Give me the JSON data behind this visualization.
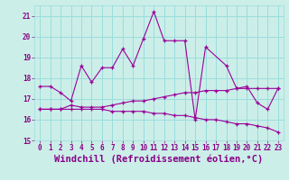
{
  "xlabel": "Windchill (Refroidissement éolien,°C)",
  "background_color": "#cceee8",
  "grid_color": "#99dddd",
  "line_color": "#990099",
  "xlim": [
    -0.5,
    23.5
  ],
  "ylim": [
    15,
    21.5
  ],
  "yticks": [
    15,
    16,
    17,
    18,
    19,
    20,
    21
  ],
  "xticks": [
    0,
    1,
    2,
    3,
    4,
    5,
    6,
    7,
    8,
    9,
    10,
    11,
    12,
    13,
    14,
    15,
    16,
    17,
    18,
    19,
    20,
    21,
    22,
    23
  ],
  "series1_x": [
    0,
    1,
    2,
    3,
    4,
    5,
    6,
    7,
    8,
    9,
    10,
    11,
    12,
    13,
    14,
    15,
    16,
    18,
    19,
    20,
    21,
    22,
    23
  ],
  "series1_y": [
    17.6,
    17.6,
    17.3,
    16.9,
    18.6,
    17.8,
    18.5,
    18.5,
    19.4,
    18.6,
    19.9,
    21.2,
    19.8,
    19.8,
    19.8,
    16.0,
    19.5,
    18.6,
    17.5,
    17.6,
    16.8,
    16.5,
    17.5
  ],
  "series2_x": [
    0,
    1,
    2,
    3,
    4,
    5,
    6,
    7,
    8,
    9,
    10,
    11,
    12,
    13,
    14,
    15,
    16,
    17,
    18,
    19,
    20,
    21,
    22,
    23
  ],
  "series2_y": [
    16.5,
    16.5,
    16.5,
    16.7,
    16.6,
    16.6,
    16.6,
    16.7,
    16.8,
    16.9,
    16.9,
    17.0,
    17.1,
    17.2,
    17.3,
    17.3,
    17.4,
    17.4,
    17.4,
    17.5,
    17.5,
    17.5,
    17.5,
    17.5
  ],
  "series3_x": [
    0,
    1,
    2,
    3,
    4,
    5,
    6,
    7,
    8,
    9,
    10,
    11,
    12,
    13,
    14,
    15,
    16,
    17,
    18,
    19,
    20,
    21,
    22,
    23
  ],
  "series3_y": [
    16.5,
    16.5,
    16.5,
    16.5,
    16.5,
    16.5,
    16.5,
    16.4,
    16.4,
    16.4,
    16.4,
    16.3,
    16.3,
    16.2,
    16.2,
    16.1,
    16.0,
    16.0,
    15.9,
    15.8,
    15.8,
    15.7,
    15.6,
    15.4
  ],
  "font_color": "#880088",
  "tick_fontsize": 5.5,
  "label_fontsize": 7.5
}
